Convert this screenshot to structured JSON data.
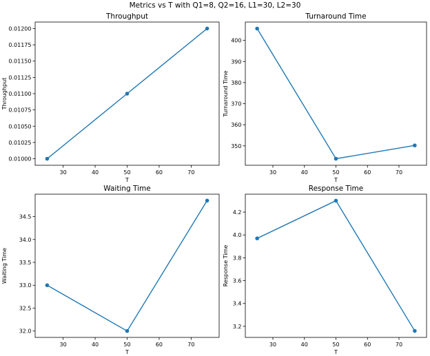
{
  "suptitle": "Metrics vs T with Q1=8, Q2=16, L1=30, L2=30",
  "chart_data": [
    {
      "type": "line",
      "title": "Throughput",
      "xlabel": "T",
      "ylabel": "Throughput",
      "x": [
        25,
        50,
        75
      ],
      "y": [
        0.01,
        0.011,
        0.012
      ],
      "xlim": [
        21.25,
        78.75
      ],
      "ylim": [
        0.0099,
        0.0121
      ],
      "xticks": [
        30,
        40,
        50,
        60,
        70
      ],
      "yticks": [
        0.01,
        0.01025,
        0.0105,
        0.01075,
        0.011,
        0.01125,
        0.0115,
        0.01175,
        0.012
      ],
      "ytick_labels": [
        "0.01000",
        "0.01025",
        "0.01050",
        "0.01075",
        "0.01100",
        "0.01125",
        "0.01150",
        "0.01175",
        "0.01200"
      ],
      "color": "#1f77b4",
      "marker": "circle",
      "grid": false
    },
    {
      "type": "line",
      "title": "Turnaround Time",
      "xlabel": "T",
      "ylabel": "Turnaround Time",
      "x": [
        25,
        50,
        75
      ],
      "y": [
        405.6,
        343.9,
        350.2
      ],
      "xlim": [
        21.25,
        78.75
      ],
      "ylim": [
        340.8,
        408.7
      ],
      "xticks": [
        30,
        40,
        50,
        60,
        70
      ],
      "yticks": [
        350,
        360,
        370,
        380,
        390,
        400
      ],
      "ytick_labels": [
        "350",
        "360",
        "370",
        "380",
        "390",
        "400"
      ],
      "color": "#1f77b4",
      "marker": "circle",
      "grid": false
    },
    {
      "type": "line",
      "title": "Waiting Time",
      "xlabel": "T",
      "ylabel": "Waiting Time",
      "x": [
        25,
        50,
        75
      ],
      "y": [
        33.0,
        32.0,
        34.85
      ],
      "xlim": [
        21.25,
        78.75
      ],
      "ylim": [
        31.86,
        34.99
      ],
      "xticks": [
        30,
        40,
        50,
        60,
        70
      ],
      "yticks": [
        32.0,
        32.5,
        33.0,
        33.5,
        34.0,
        34.5
      ],
      "ytick_labels": [
        "32.0",
        "32.5",
        "33.0",
        "33.5",
        "34.0",
        "34.5"
      ],
      "color": "#1f77b4",
      "marker": "circle",
      "grid": false
    },
    {
      "type": "line",
      "title": "Response Time",
      "xlabel": "T",
      "ylabel": "Response Time",
      "x": [
        25,
        50,
        75
      ],
      "y": [
        3.97,
        4.3,
        3.16
      ],
      "xlim": [
        21.25,
        78.75
      ],
      "ylim": [
        3.103,
        4.357
      ],
      "xticks": [
        30,
        40,
        50,
        60,
        70
      ],
      "yticks": [
        3.2,
        3.4,
        3.6,
        3.8,
        4.0,
        4.2
      ],
      "ytick_labels": [
        "3.2",
        "3.4",
        "3.6",
        "3.8",
        "4.0",
        "4.2"
      ],
      "color": "#1f77b4",
      "marker": "circle",
      "grid": false
    }
  ]
}
